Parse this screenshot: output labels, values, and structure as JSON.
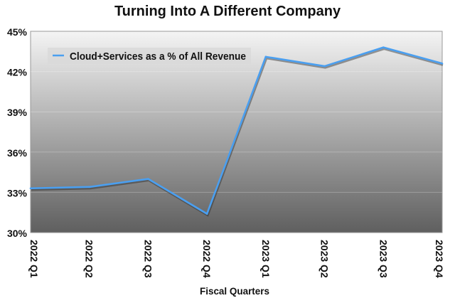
{
  "chart_data": {
    "type": "line",
    "title": "Turning Into A Different Company",
    "xlabel": "Fiscal Quarters",
    "ylabel": "",
    "categories": [
      "2022 Q1",
      "2022 Q2",
      "2022 Q3",
      "2022 Q4",
      "2023 Q1",
      "2023 Q2",
      "2023 Q3",
      "2023 Q4"
    ],
    "series": [
      {
        "name": "Cloud+Services as a % of All Revenue",
        "values": [
          33.3,
          33.4,
          34.0,
          31.4,
          43.1,
          42.4,
          43.8,
          42.6
        ],
        "color": "#4a9ff0"
      }
    ],
    "ylim": [
      30,
      45
    ],
    "yticks": [
      30,
      33,
      36,
      39,
      42,
      45
    ],
    "ytick_labels": [
      "30%",
      "33%",
      "36%",
      "39%",
      "42%",
      "45%"
    ],
    "grid": true,
    "legend": "top-left",
    "background": "gradient light gray to dark gray"
  }
}
